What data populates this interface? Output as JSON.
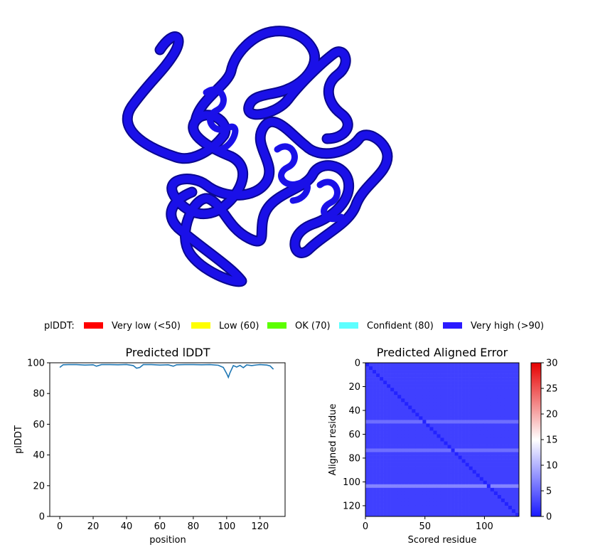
{
  "colors": {
    "structure": "#1a10e8",
    "structure_dark": "#0a0790",
    "lddt_line": "#1f77b4",
    "pae_low": "#1a1aff",
    "pae_mid": "#ffffff",
    "pae_high": "#e60000"
  },
  "legend": {
    "prefix": "plDDT:",
    "items": [
      {
        "label": "Very low (<50)",
        "color": "#ff0000"
      },
      {
        "label": "Low (60)",
        "color": "#ffff00"
      },
      {
        "label": "OK (70)",
        "color": "#5cff00"
      },
      {
        "label": "Confident (80)",
        "color": "#5cffff"
      },
      {
        "label": "Very high (>90)",
        "color": "#2b1aff"
      }
    ]
  },
  "chart_data": [
    {
      "type": "line",
      "title": "Predicted lDDT",
      "xlabel": "position",
      "ylabel": "plDDT",
      "xlim": [
        -6,
        135
      ],
      "ylim": [
        0,
        100
      ],
      "xticks": [
        0,
        20,
        40,
        60,
        80,
        100,
        120
      ],
      "yticks": [
        0,
        20,
        40,
        60,
        80,
        100
      ],
      "x": [
        0,
        2,
        5,
        10,
        15,
        20,
        22,
        25,
        30,
        35,
        40,
        44,
        46,
        48,
        50,
        55,
        60,
        65,
        68,
        70,
        75,
        80,
        85,
        90,
        95,
        98,
        100,
        101,
        102,
        104,
        106,
        108,
        110,
        112,
        115,
        118,
        120,
        124,
        126,
        128
      ],
      "y": [
        97,
        98.7,
        98.8,
        98.8,
        98.5,
        98.7,
        97.8,
        98.8,
        98.8,
        98.7,
        98.9,
        98.2,
        96.5,
        97,
        98.8,
        98.8,
        98.5,
        98.7,
        97.8,
        98.7,
        98.8,
        98.8,
        98.7,
        98.8,
        98.4,
        97,
        93,
        90.5,
        93.5,
        98.2,
        97.2,
        98.3,
        96.8,
        98.6,
        98.2,
        98.6,
        98.8,
        98.5,
        98,
        95.8
      ]
    },
    {
      "type": "heatmap",
      "title": "Predicted Aligned Error",
      "xlabel": "Scored residue",
      "ylabel": "Aligned residue",
      "size": 129,
      "xticks": [
        0,
        50,
        100
      ],
      "yticks": [
        0,
        20,
        40,
        60,
        80,
        100,
        120
      ],
      "vmin": 0,
      "vmax": 30,
      "colorbar_ticks": [
        0,
        5,
        10,
        15,
        20,
        25,
        30
      ],
      "typical_error": 2.5,
      "diagonal_error": 0.6,
      "high_error_rows": [
        {
          "residue": 48,
          "error": 5.5
        },
        {
          "residue": 71,
          "error": 5.5
        },
        {
          "residue": 101,
          "error": 7
        }
      ]
    }
  ]
}
